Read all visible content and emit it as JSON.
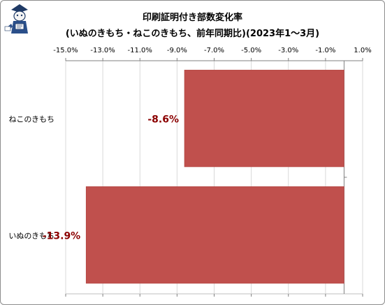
{
  "chart_data": {
    "type": "bar",
    "orientation": "horizontal",
    "title_lines": [
      "印刷証明付き部数変化率",
      "(いぬのきもち・ねこのきもち、前年同期比)(2023年1～3月)"
    ],
    "categories": [
      "ねこのきもち",
      "いぬのきもち"
    ],
    "values": [
      -8.6,
      -13.9
    ],
    "data_labels": [
      "-8.6%",
      "-13.9%"
    ],
    "xlim": [
      -15.0,
      1.0
    ],
    "xticks": [
      -15.0,
      -13.0,
      -11.0,
      -9.0,
      -7.0,
      -5.0,
      -3.0,
      -1.0,
      1.0
    ],
    "xtick_labels": [
      "-15.0%",
      "-13.0%",
      "-11.0%",
      "-9.0%",
      "-7.0%",
      "-5.0%",
      "-3.0%",
      "-1.0%",
      "1.0%"
    ],
    "xlabel": "",
    "ylabel": "",
    "grid": "vertical",
    "axis_position": "top",
    "legend": "none",
    "bar_color": "#c0504d",
    "label_color": "#8b0000",
    "grid_color": "#d9d9d9"
  }
}
